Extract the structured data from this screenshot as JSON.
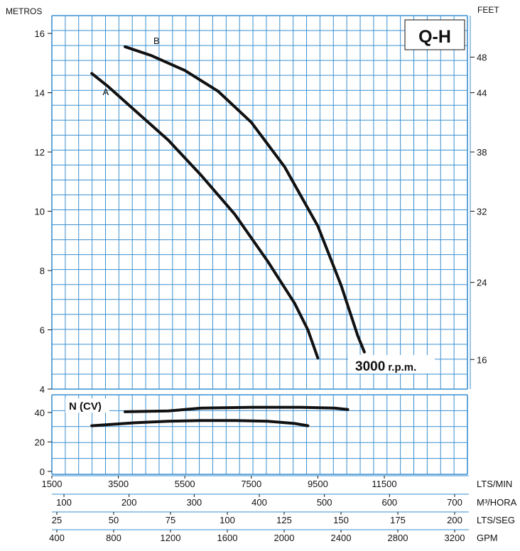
{
  "colors": {
    "grid": "#3a8fd0",
    "curve": "#111111",
    "text": "#111111",
    "background": "#ffffff"
  },
  "chart_data": [
    {
      "type": "line",
      "title": "Q-H",
      "ylabel_left": "METROS",
      "ylabel_right": "FEET",
      "speed_label_bold": "3000",
      "speed_label_unit": "r.p.m.",
      "y_ticks_left": [
        4,
        6,
        8,
        10,
        12,
        14,
        16
      ],
      "y_ticks_right": [
        {
          "label": "48",
          "at": 15.2
        },
        {
          "label": "44",
          "at": 14.0
        },
        {
          "label": "38",
          "at": 12.0
        },
        {
          "label": "32",
          "at": 10.0
        },
        {
          "label": "24",
          "at": 7.6
        },
        {
          "label": "16",
          "at": 5.0
        }
      ],
      "ylim": [
        4,
        16.6
      ],
      "xlim": [
        1500,
        14000
      ],
      "x_unit": "LTS/MIN",
      "grid": true,
      "series": [
        {
          "name": "A",
          "x": [
            2700,
            3200,
            4000,
            5000,
            6000,
            7000,
            8000,
            8800,
            9200,
            9500
          ],
          "y": [
            14.65,
            14.2,
            13.4,
            12.4,
            11.2,
            9.9,
            8.3,
            6.9,
            6.0,
            5.05
          ]
        },
        {
          "name": "B",
          "x": [
            3700,
            4500,
            5500,
            6500,
            7500,
            8500,
            9500,
            10200,
            10700,
            10900
          ],
          "y": [
            15.55,
            15.25,
            14.75,
            14.05,
            13.0,
            11.5,
            9.5,
            7.5,
            5.8,
            5.25
          ]
        }
      ]
    },
    {
      "type": "line",
      "title": "N (CV)",
      "y_ticks": [
        0,
        20,
        40
      ],
      "ylim": [
        -2,
        52
      ],
      "xlim": [
        1500,
        14000
      ],
      "x_unit": "LTS/MIN",
      "grid": true,
      "series": [
        {
          "x": [
            3700,
            5000,
            6000,
            7500,
            9000,
            10000,
            10400
          ],
          "y": [
            40.5,
            41.0,
            43.0,
            43.5,
            43.5,
            43.0,
            42.0
          ]
        },
        {
          "x": [
            2700,
            4000,
            5000,
            6000,
            7000,
            8000,
            8800,
            9200
          ],
          "y": [
            31.0,
            33.0,
            34.0,
            34.5,
            34.5,
            34.0,
            32.5,
            31.0
          ]
        }
      ]
    }
  ],
  "x_axes": [
    {
      "unit": "LTS/MIN",
      "labels": [
        "1500",
        "3500",
        "5500",
        "7500",
        "9500",
        "11500"
      ]
    },
    {
      "unit": "M³/HORA",
      "labels": [
        "100",
        "200",
        "300",
        "400",
        "500",
        "600",
        "700"
      ]
    },
    {
      "unit": "LTS/SEG",
      "labels": [
        "25",
        "50",
        "75",
        "100",
        "125",
        "150",
        "175",
        "200"
      ]
    },
    {
      "unit": "GPM",
      "labels": [
        "400",
        "800",
        "1200",
        "1600",
        "2000",
        "2400",
        "2800",
        "3200"
      ]
    }
  ]
}
